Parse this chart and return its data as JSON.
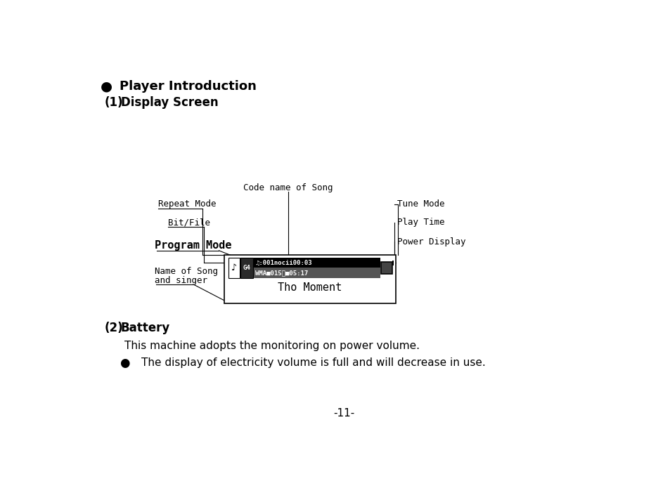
{
  "bg_color": "#ffffff",
  "text_color": "#000000",
  "title_bullet": "●",
  "title_text": "Player Introduction",
  "section1_label": "(1)",
  "section1_title": "Display Screen",
  "section2_label": "(2)",
  "section2_title": "Battery",
  "section2_body": "This machine adopts the monitoring on power volume.",
  "section2_bullet": "●",
  "section2_bullet_text": "The display of electricity volume is full and will decrease in use.",
  "page_number": "-11-",
  "diagram_label_top": "Code name of Song",
  "label_repeat": "Repeat Mode",
  "label_bitfile": "Bit/File",
  "label_program": "Program Mode",
  "label_namesong": "Name of Song",
  "label_andsinger": "and singer",
  "label_tune": "Tune Mode",
  "label_playtime": "Play Time",
  "label_power": "Power Display",
  "display_text": "Tho Moment"
}
